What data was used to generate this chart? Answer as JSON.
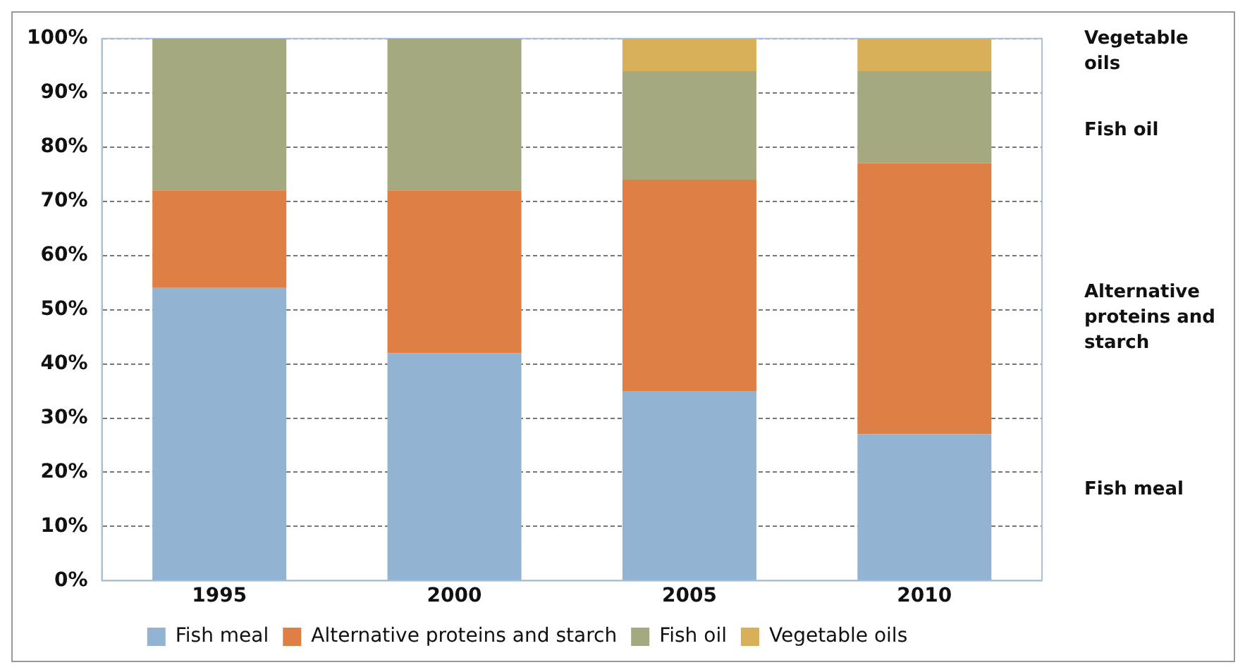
{
  "chart_data": {
    "type": "bar",
    "stacked": true,
    "categories": [
      "1995",
      "2000",
      "2005",
      "2010"
    ],
    "series": [
      {
        "name": "Fish meal",
        "color": "#93b3d3",
        "values": [
          54,
          42,
          35,
          27
        ]
      },
      {
        "name": "Alternative proteins and starch",
        "color": "#de7f45",
        "values": [
          18,
          30,
          39,
          50
        ]
      },
      {
        "name": "Fish oil",
        "color": "#a4a97f",
        "values": [
          28,
          28,
          20,
          17
        ]
      },
      {
        "name": "Vegetable oils",
        "color": "#d9b05a",
        "values": [
          0,
          0,
          6,
          6
        ]
      }
    ],
    "ylim": [
      0,
      100
    ],
    "yticks": [
      {
        "value": 0,
        "label": "0%"
      },
      {
        "value": 10,
        "label": "10%"
      },
      {
        "value": 20,
        "label": "20%"
      },
      {
        "value": 30,
        "label": "30%"
      },
      {
        "value": 40,
        "label": "40%"
      },
      {
        "value": 50,
        "label": "50%"
      },
      {
        "value": 60,
        "label": "60%"
      },
      {
        "value": 70,
        "label": "70%"
      },
      {
        "value": 80,
        "label": "80%"
      },
      {
        "value": 90,
        "label": "90%"
      },
      {
        "value": 100,
        "label": "100%"
      }
    ],
    "grid": "y",
    "legend": "bottom",
    "annotations": [
      "Vegetable oils",
      "Fish oil",
      "Alternative proteins and starch",
      "Fish meal"
    ]
  }
}
